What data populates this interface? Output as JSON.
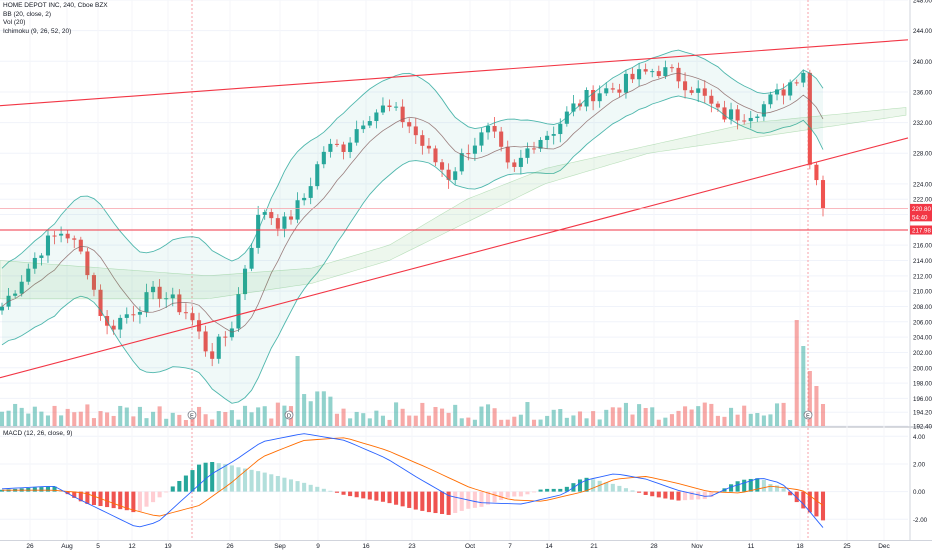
{
  "legend": {
    "symbol": "HOME DEPOT INC, 240, Cboe BZX",
    "bb": "BB (20, close, 2)",
    "vol": "Vol (20)",
    "ichimoku": "Ichimoku (9, 26, 52, 20)",
    "macd": "MACD (12, 26, close, 9)"
  },
  "price_labels": {
    "last": "220.80",
    "countdown": "54:40",
    "support": "217.98"
  },
  "event_markers": [
    "E",
    "D",
    "E"
  ],
  "colors": {
    "up": "#26a69a",
    "down": "#ef5350",
    "trendline": "#f23645",
    "macd_line": "#2962ff",
    "signal_line": "#ff6d00"
  },
  "chart_data": [
    {
      "type": "candlestick",
      "title": "HOME DEPOT INC, 240, Cboe BZX",
      "y_ticks": [
        "248.00",
        "244.00",
        "240.00",
        "236.00",
        "232.00",
        "228.00",
        "224.00",
        "222.00",
        "220.00",
        "218.00",
        "216.00",
        "214.00",
        "212.00",
        "210.00",
        "208.00",
        "206.00",
        "204.00",
        "202.00",
        "200.00",
        "198.00",
        "196.00",
        "194.20",
        "192.40"
      ],
      "x_ticks": [
        "26",
        "Aug",
        "5",
        "12",
        "19",
        "26",
        "Sep",
        "9",
        "16",
        "23",
        "Oct",
        "7",
        "14",
        "21",
        "28",
        "Nov",
        "11",
        "18",
        "25",
        "Dec"
      ],
      "ylim": [
        192.4,
        248
      ],
      "grid": true,
      "annotations": [
        "Ascending channel upper trendline",
        "Ascending channel lower trendline",
        "Horizontal support at 217.98",
        "Horizontal level near 220.8"
      ]
    },
    {
      "type": "bar",
      "title": "Vol (20)",
      "description": "Volume histogram with large spike on Nov 19 earnings"
    },
    {
      "type": "line",
      "title": "MACD (12, 26, close, 9)",
      "y_ticks": [
        "4.00",
        "2.00",
        "0.00",
        "-2.00"
      ],
      "ylim": [
        -3.5,
        4.6
      ],
      "series": [
        {
          "name": "MACD"
        },
        {
          "name": "Signal"
        },
        {
          "name": "Histogram"
        }
      ]
    }
  ]
}
